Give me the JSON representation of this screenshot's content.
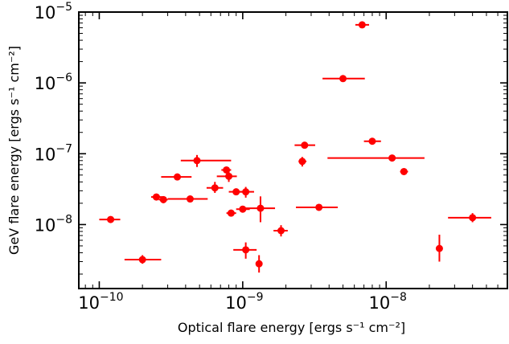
{
  "chart_data": {
    "type": "scatter",
    "title": "",
    "xlabel": "Optical flare energy [ergs s⁻¹ cm⁻²]",
    "ylabel": "GeV flare energy [ergs s⁻¹ cm⁻²]",
    "xscale": "log",
    "yscale": "log",
    "xlim": [
      7.2e-11,
      7e-08
    ],
    "ylim": [
      1.25e-09,
      1e-05
    ],
    "x_ticks": [
      {
        "value": 1e-10,
        "base": "10",
        "exp": "−10"
      },
      {
        "value": 1e-09,
        "base": "10",
        "exp": "−9"
      },
      {
        "value": 1e-08,
        "base": "10",
        "exp": "−8"
      }
    ],
    "y_ticks": [
      {
        "value": 1e-08,
        "base": "10",
        "exp": "−8"
      },
      {
        "value": 1e-07,
        "base": "10",
        "exp": "−7"
      },
      {
        "value": 1e-06,
        "base": "10",
        "exp": "−6"
      },
      {
        "value": 1e-05,
        "base": "10",
        "exp": "−5"
      }
    ],
    "marker_color": "#ff0000",
    "grid": false,
    "legend": "none",
    "series": [
      {
        "points": [
          {
            "x": 1.2e-10,
            "y": 1.18e-08,
            "xerr": [
              1e-10,
              1.4e-10
            ],
            "yerr": [
              1.1e-08,
              1.26e-08
            ]
          },
          {
            "x": 2e-10,
            "y": 3.2e-09,
            "xerr": [
              1.5e-10,
              2.7e-10
            ],
            "yerr": [
              2.8e-09,
              3.7e-09
            ]
          },
          {
            "x": 2.5e-10,
            "y": 2.45e-08,
            "xerr": [
              2.3e-10,
              2.8e-10
            ],
            "yerr": [
              2.2e-08,
              2.7e-08
            ]
          },
          {
            "x": 2.8e-10,
            "y": 2.25e-08,
            "xerr": [
              2.6e-10,
              3e-10
            ],
            "yerr": [
              2e-08,
              2.5e-08
            ]
          },
          {
            "x": 3.5e-10,
            "y": 4.7e-08,
            "xerr": [
              2.7e-10,
              4.4e-10
            ],
            "yerr": [
              4.5e-08,
              4.9e-08
            ]
          },
          {
            "x": 4.3e-10,
            "y": 2.3e-08,
            "xerr": [
              3e-10,
              5.7e-10
            ],
            "yerr": [
              2.1e-08,
              2.5e-08
            ]
          },
          {
            "x": 4.8e-10,
            "y": 8e-08,
            "xerr": [
              3.7e-10,
              8.3e-10
            ],
            "yerr": [
              6.5e-08,
              9.6e-08
            ]
          },
          {
            "x": 6.4e-10,
            "y": 3.3e-08,
            "xerr": [
              5.6e-10,
              7.3e-10
            ],
            "yerr": [
              2.8e-08,
              4e-08
            ]
          },
          {
            "x": 7.7e-10,
            "y": 5.9e-08,
            "xerr": [
              7.1e-10,
              8.3e-10
            ],
            "yerr": [
              5.5e-08,
              6.3e-08
            ]
          },
          {
            "x": 8e-10,
            "y": 4.8e-08,
            "xerr": [
              6.6e-10,
              9.1e-10
            ],
            "yerr": [
              4e-08,
              6e-08
            ]
          },
          {
            "x": 8.3e-10,
            "y": 1.45e-08,
            "xerr": [
              7.7e-10,
              9e-10
            ],
            "yerr": [
              1.3e-08,
              1.62e-08
            ]
          },
          {
            "x": 9e-10,
            "y": 2.9e-08,
            "xerr": [
              8e-10,
              1.02e-09
            ],
            "yerr": [
              2.6e-08,
              3.2e-08
            ]
          },
          {
            "x": 1e-09,
            "y": 1.65e-08,
            "xerr": [
              9e-10,
              1.12e-09
            ],
            "yerr": [
              1.6e-08,
              1.7e-08
            ]
          },
          {
            "x": 1.05e-09,
            "y": 2.9e-08,
            "xerr": [
              9.3e-10,
              1.2e-09
            ],
            "yerr": [
              2.4e-08,
              3.4e-08
            ]
          },
          {
            "x": 1.05e-09,
            "y": 4.4e-09,
            "xerr": [
              8.6e-10,
              1.25e-09
            ],
            "yerr": [
              3.3e-09,
              5.6e-09
            ]
          },
          {
            "x": 1.33e-09,
            "y": 1.7e-08,
            "xerr": [
              1.05e-09,
              1.68e-09
            ],
            "yerr": [
              1.08e-08,
              2.5e-08
            ]
          },
          {
            "x": 1.3e-09,
            "y": 2.8e-09,
            "xerr": [
              1.25e-09,
              1.36e-09
            ],
            "yerr": [
              2.1e-09,
              3.7e-09
            ]
          },
          {
            "x": 1.85e-09,
            "y": 8.2e-09,
            "xerr": [
              1.64e-09,
              2.06e-09
            ],
            "yerr": [
              6.8e-09,
              9.8e-09
            ]
          },
          {
            "x": 2.7e-09,
            "y": 1.32e-07,
            "xerr": [
              2.3e-09,
              3.2e-09
            ],
            "yerr": [
              1.26e-07,
              1.38e-07
            ]
          },
          {
            "x": 2.6e-09,
            "y": 7.8e-08,
            "xerr": [
              2.45e-09,
              2.78e-09
            ],
            "yerr": [
              6.6e-08,
              9e-08
            ]
          },
          {
            "x": 3.4e-09,
            "y": 1.75e-08,
            "xerr": [
              2.35e-09,
              4.6e-09
            ],
            "yerr": [
              1.65e-08,
              1.85e-08
            ]
          },
          {
            "x": 5e-09,
            "y": 1.15e-06,
            "xerr": [
              3.6e-09,
              7.1e-09
            ],
            "yerr": [
              1.1e-06,
              1.2e-06
            ]
          },
          {
            "x": 6.8e-09,
            "y": 6.6e-06,
            "xerr": [
              6.1e-09,
              7.6e-09
            ],
            "yerr": [
              6.3e-06,
              6.9e-06
            ]
          },
          {
            "x": 8e-09,
            "y": 1.5e-07,
            "xerr": [
              7e-09,
              9.2e-09
            ],
            "yerr": [
              1.35e-07,
              1.65e-07
            ]
          },
          {
            "x": 1.1e-08,
            "y": 8.7e-08,
            "xerr": [
              3.9e-09,
              1.85e-08
            ],
            "yerr": [
              8.3e-08,
              9.1e-08
            ]
          },
          {
            "x": 1.33e-08,
            "y": 5.6e-08,
            "xerr": [
              1.25e-08,
              1.42e-08
            ],
            "yerr": [
              5.2e-08,
              6e-08
            ]
          },
          {
            "x": 2.35e-08,
            "y": 4.6e-09,
            "xerr": [
              2.25e-08,
              2.46e-08
            ],
            "yerr": [
              3e-09,
              7.2e-09
            ]
          },
          {
            "x": 4e-08,
            "y": 1.25e-08,
            "xerr": [
              2.7e-08,
              5.4e-08
            ],
            "yerr": [
              1.08e-08,
              1.45e-08
            ]
          }
        ]
      }
    ]
  }
}
